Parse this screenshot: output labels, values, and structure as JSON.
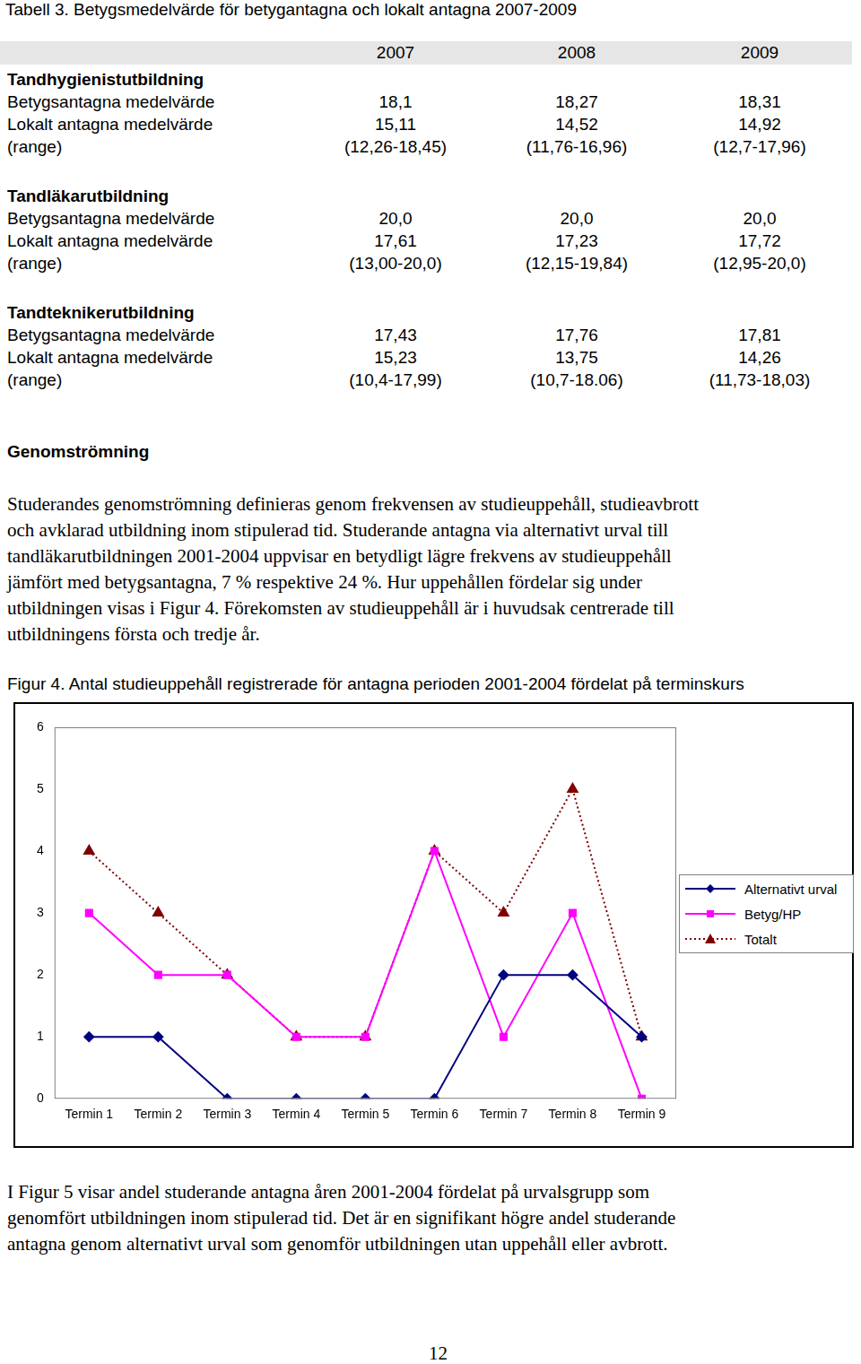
{
  "table": {
    "title": "Tabell 3. Betygsmedelvärde för betygantagna och lokalt antagna 2007-2009",
    "header": [
      "2007",
      "2008",
      "2009"
    ],
    "groups": [
      {
        "name": "Tandhygienistutbildning",
        "rows": [
          [
            "Betygsantagna medelvärde",
            "18,1",
            "18,27",
            "18,31"
          ],
          [
            "Lokalt antagna medelvärde",
            "15,11",
            "14,52",
            "14,92"
          ],
          [
            "(range)",
            "(12,26-18,45)",
            "(11,76-16,96)",
            "(12,7-17,96)"
          ]
        ]
      },
      {
        "name": "Tandläkarutbildning",
        "rows": [
          [
            "Betygsantagna medelvärde",
            "20,0",
            "20,0",
            "20,0"
          ],
          [
            "Lokalt antagna medelvärde",
            "17,61",
            "17,23",
            "17,72"
          ],
          [
            "(range)",
            "(13,00-20,0)",
            "(12,15-19,84)",
            "(12,95-20,0)"
          ]
        ]
      },
      {
        "name": "Tandteknikerutbildning",
        "rows": [
          [
            "Betygsantagna medelvärde",
            "17,43",
            "17,76",
            "17,81"
          ],
          [
            "Lokalt antagna medelvärde",
            "15,23",
            "13,75",
            "14,26"
          ],
          [
            "(range)",
            "(10,4-17,99)",
            "(10,7-18.06)",
            "(11,73-18,03)"
          ]
        ]
      }
    ]
  },
  "section": {
    "heading": "Genomströmning",
    "paragraph_lines": [
      "Studerandes genomströmning definieras genom frekvensen av studieuppehåll, studieavbrott",
      "och avklarad utbildning inom stipulerad tid. Studerande antagna via alternativt urval till",
      "tandläkarutbildningen 2001-2004 uppvisar en betydligt lägre frekvens av studieuppehåll",
      "jämfört med betygsantagna, 7 % respektive 24 %. Hur uppehållen fördelar sig under",
      "utbildningen visas i Figur 4. Förekomsten av studieuppehåll är i huvudsak centrerade till",
      "utbildningens första och tredje år."
    ]
  },
  "figure": {
    "label": "Figur 4.",
    "caption": "Antal studieuppehåll registrerade för antagna perioden 2001-2004 fördelat på terminskurs"
  },
  "chart_data": {
    "type": "line",
    "categories": [
      "Termin 1",
      "Termin 2",
      "Termin 3",
      "Termin 4",
      "Termin 5",
      "Termin 6",
      "Termin 7",
      "Termin 8",
      "Termin 9"
    ],
    "series": [
      {
        "name": "Alternativt urval",
        "color": "#000080",
        "marker": "diamond",
        "line_style": "solid",
        "values": [
          1,
          1,
          0,
          0,
          0,
          0,
          2,
          2,
          1
        ]
      },
      {
        "name": "Betyg/HP",
        "color": "#ff00ff",
        "marker": "square",
        "line_style": "solid",
        "values": [
          3,
          2,
          2,
          1,
          1,
          4,
          1,
          3,
          0
        ]
      },
      {
        "name": "Totalt",
        "color": "#800000",
        "marker": "triangle",
        "line_style": "dotted",
        "values": [
          4,
          3,
          2,
          1,
          1,
          4,
          3,
          5,
          1
        ]
      }
    ],
    "ylim": [
      0,
      6
    ],
    "yticks": [
      0,
      1,
      2,
      3,
      4,
      5,
      6
    ],
    "grid": false,
    "legend": "right"
  },
  "closing_paragraph_lines": [
    "I Figur 5 visar andel studerande antagna åren 2001-2004 fördelat på urvalsgrupp som",
    "genomfört utbildningen inom stipulerad tid. Det är en signifikant högre andel studerande",
    "antagna genom alternativt urval som genomför utbildningen utan uppehåll eller avbrott."
  ],
  "page_number": "12"
}
